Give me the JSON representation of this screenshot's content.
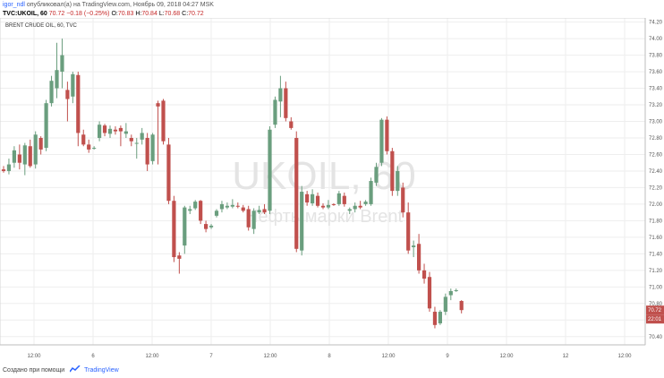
{
  "header": {
    "line1": {
      "user": "igor_ndl",
      "text": "опубликовал(а) на TradingView.com, Ноябрь 09, 2018 04:27 MSK"
    },
    "line2": {
      "symbol": "TVC:UKOIL, 60",
      "last": "70.72",
      "change": "−0.18 (−0.25%)",
      "o_label": "O:",
      "o_value": "70.83",
      "h_label": "H:",
      "h_value": "70.84",
      "l_label": "L:",
      "l_value": "70.68",
      "c_label": "C:",
      "c_value": "70.72"
    }
  },
  "footer": {
    "text": "Создано при помощи",
    "brand": "TradingView"
  },
  "watermark": {
    "line1": "UKOIL, 60",
    "line2": "Нефть марки Brent"
  },
  "colors": {
    "up": "#6a9e7e",
    "down": "#c0504d",
    "grid": "#eeeeee",
    "axis_text": "#555555",
    "price_label_bg": "#c0504d",
    "watermark": "#e4e4e4"
  },
  "chart_data": {
    "type": "candlestick",
    "title": "BRENT CRUDE OIL, 60, TVC",
    "y_range": [
      70.3,
      74.25
    ],
    "y_ticks": [
      "70.40",
      "70.60",
      "70.80",
      "71.00",
      "71.20",
      "71.40",
      "71.60",
      "71.80",
      "72.00",
      "72.20",
      "72.40",
      "72.60",
      "72.80",
      "73.00",
      "73.20",
      "73.40",
      "73.60",
      "73.80",
      "74.00",
      "74.20"
    ],
    "x_ticks": [
      "12:00",
      "6",
      "12:00",
      "7",
      "12:00",
      "8",
      "12:00",
      "9",
      "12:00",
      "12",
      "12:00"
    ],
    "current_price": "70.72",
    "current_time_label": "22:01",
    "candles": [
      {
        "o": 72.42,
        "h": 72.46,
        "l": 72.38,
        "c": 72.4
      },
      {
        "o": 72.4,
        "h": 72.55,
        "l": 72.36,
        "c": 72.48
      },
      {
        "o": 72.5,
        "h": 72.7,
        "l": 72.44,
        "c": 72.65
      },
      {
        "o": 72.6,
        "h": 72.72,
        "l": 72.42,
        "c": 72.5
      },
      {
        "o": 72.48,
        "h": 72.74,
        "l": 72.35,
        "c": 72.71
      },
      {
        "o": 72.7,
        "h": 72.78,
        "l": 72.44,
        "c": 72.46
      },
      {
        "o": 72.48,
        "h": 72.88,
        "l": 72.43,
        "c": 72.84
      },
      {
        "o": 72.8,
        "h": 72.82,
        "l": 72.6,
        "c": 72.66
      },
      {
        "o": 72.68,
        "h": 73.26,
        "l": 72.64,
        "c": 73.22
      },
      {
        "o": 73.22,
        "h": 73.55,
        "l": 73.18,
        "c": 73.49
      },
      {
        "o": 73.4,
        "h": 73.95,
        "l": 73.28,
        "c": 73.62
      },
      {
        "o": 73.6,
        "h": 74.0,
        "l": 73.4,
        "c": 73.8
      },
      {
        "o": 73.38,
        "h": 73.48,
        "l": 73.0,
        "c": 73.27
      },
      {
        "o": 73.3,
        "h": 73.6,
        "l": 73.22,
        "c": 73.57
      },
      {
        "o": 73.56,
        "h": 73.6,
        "l": 72.7,
        "c": 72.86
      },
      {
        "o": 72.84,
        "h": 72.9,
        "l": 72.7,
        "c": 72.72
      },
      {
        "o": 72.72,
        "h": 72.78,
        "l": 72.62,
        "c": 72.66
      },
      {
        "o": 72.68,
        "h": 72.7,
        "l": 72.66,
        "c": 72.68
      },
      {
        "o": 72.8,
        "h": 73.0,
        "l": 72.76,
        "c": 72.96
      },
      {
        "o": 72.95,
        "h": 72.97,
        "l": 72.82,
        "c": 72.86
      },
      {
        "o": 72.85,
        "h": 72.95,
        "l": 72.8,
        "c": 72.91
      },
      {
        "o": 72.9,
        "h": 72.94,
        "l": 72.84,
        "c": 72.88
      },
      {
        "o": 72.92,
        "h": 72.95,
        "l": 72.7,
        "c": 72.88
      },
      {
        "o": 72.85,
        "h": 72.98,
        "l": 72.8,
        "c": 72.88
      },
      {
        "o": 72.8,
        "h": 72.84,
        "l": 72.7,
        "c": 72.76
      },
      {
        "o": 72.74,
        "h": 72.8,
        "l": 72.55,
        "c": 72.74
      },
      {
        "o": 72.78,
        "h": 72.92,
        "l": 72.72,
        "c": 72.86
      },
      {
        "o": 72.8,
        "h": 72.86,
        "l": 72.4,
        "c": 72.48
      },
      {
        "o": 72.52,
        "h": 72.86,
        "l": 72.48,
        "c": 72.84
      },
      {
        "o": 73.22,
        "h": 73.25,
        "l": 72.48,
        "c": 73.18
      },
      {
        "o": 73.25,
        "h": 73.27,
        "l": 72.72,
        "c": 72.76
      },
      {
        "o": 72.72,
        "h": 72.8,
        "l": 72.0,
        "c": 72.04
      },
      {
        "o": 72.04,
        "h": 72.1,
        "l": 71.3,
        "c": 71.36
      },
      {
        "o": 71.38,
        "h": 71.42,
        "l": 71.16,
        "c": 71.34
      },
      {
        "o": 71.5,
        "h": 71.98,
        "l": 71.4,
        "c": 71.96
      },
      {
        "o": 71.92,
        "h": 71.98,
        "l": 71.88,
        "c": 71.94
      },
      {
        "o": 71.95,
        "h": 72.05,
        "l": 71.93,
        "c": 72.03
      },
      {
        "o": 72.04,
        "h": 72.05,
        "l": 71.76,
        "c": 71.8
      },
      {
        "o": 71.76,
        "h": 71.8,
        "l": 71.66,
        "c": 71.7
      },
      {
        "o": 71.72,
        "h": 71.76,
        "l": 71.7,
        "c": 71.74
      },
      {
        "o": 71.86,
        "h": 71.94,
        "l": 71.84,
        "c": 71.92
      },
      {
        "o": 71.94,
        "h": 72.04,
        "l": 71.9,
        "c": 72.0
      },
      {
        "o": 71.96,
        "h": 72.02,
        "l": 71.94,
        "c": 71.98
      },
      {
        "o": 71.97,
        "h": 72.06,
        "l": 71.95,
        "c": 71.99
      },
      {
        "o": 71.98,
        "h": 72.02,
        "l": 71.95,
        "c": 71.97
      },
      {
        "o": 71.96,
        "h": 71.99,
        "l": 71.9,
        "c": 71.92
      },
      {
        "o": 71.94,
        "h": 71.98,
        "l": 71.68,
        "c": 71.72
      },
      {
        "o": 71.7,
        "h": 71.95,
        "l": 71.64,
        "c": 71.92
      },
      {
        "o": 71.9,
        "h": 71.98,
        "l": 71.88,
        "c": 71.93
      },
      {
        "o": 71.94,
        "h": 72.0,
        "l": 71.88,
        "c": 71.9
      },
      {
        "o": 71.92,
        "h": 72.94,
        "l": 71.88,
        "c": 72.9
      },
      {
        "o": 72.96,
        "h": 73.3,
        "l": 72.92,
        "c": 73.26
      },
      {
        "o": 73.24,
        "h": 73.55,
        "l": 73.05,
        "c": 73.4
      },
      {
        "o": 73.4,
        "h": 73.48,
        "l": 73.0,
        "c": 73.04
      },
      {
        "o": 73.0,
        "h": 73.05,
        "l": 72.9,
        "c": 72.92
      },
      {
        "o": 72.8,
        "h": 72.88,
        "l": 71.42,
        "c": 71.46
      },
      {
        "o": 71.44,
        "h": 72.22,
        "l": 71.38,
        "c": 72.15
      },
      {
        "o": 72.12,
        "h": 72.16,
        "l": 71.98,
        "c": 72.02
      },
      {
        "o": 72.01,
        "h": 72.18,
        "l": 71.98,
        "c": 72.12
      },
      {
        "o": 72.1,
        "h": 72.14,
        "l": 71.96,
        "c": 71.98
      },
      {
        "o": 71.98,
        "h": 72.01,
        "l": 71.94,
        "c": 71.96
      },
      {
        "o": 71.96,
        "h": 72.05,
        "l": 71.94,
        "c": 71.99
      },
      {
        "o": 72.0,
        "h": 72.01,
        "l": 71.98,
        "c": 71.99
      },
      {
        "o": 72.0,
        "h": 72.16,
        "l": 71.98,
        "c": 72.13
      },
      {
        "o": 72.1,
        "h": 72.14,
        "l": 71.97,
        "c": 72.0
      },
      {
        "o": 71.92,
        "h": 71.96,
        "l": 71.88,
        "c": 71.94
      },
      {
        "o": 71.94,
        "h": 72.02,
        "l": 71.9,
        "c": 71.98
      },
      {
        "o": 71.98,
        "h": 72.04,
        "l": 71.94,
        "c": 71.96
      },
      {
        "o": 72.0,
        "h": 72.05,
        "l": 71.98,
        "c": 72.03
      },
      {
        "o": 72.0,
        "h": 72.32,
        "l": 71.98,
        "c": 72.28
      },
      {
        "o": 72.26,
        "h": 72.5,
        "l": 72.22,
        "c": 72.45
      },
      {
        "o": 72.5,
        "h": 73.04,
        "l": 72.46,
        "c": 73.02
      },
      {
        "o": 73.02,
        "h": 73.06,
        "l": 72.6,
        "c": 72.64
      },
      {
        "o": 72.64,
        "h": 72.68,
        "l": 72.1,
        "c": 72.16
      },
      {
        "o": 72.16,
        "h": 72.46,
        "l": 72.1,
        "c": 72.4
      },
      {
        "o": 72.2,
        "h": 72.26,
        "l": 71.84,
        "c": 71.9
      },
      {
        "o": 71.9,
        "h": 72.02,
        "l": 71.4,
        "c": 71.44
      },
      {
        "o": 71.48,
        "h": 71.56,
        "l": 71.36,
        "c": 71.5
      },
      {
        "o": 71.52,
        "h": 71.64,
        "l": 71.16,
        "c": 71.2
      },
      {
        "o": 71.2,
        "h": 71.28,
        "l": 71.04,
        "c": 71.1
      },
      {
        "o": 71.12,
        "h": 71.18,
        "l": 70.7,
        "c": 70.74
      },
      {
        "o": 70.7,
        "h": 70.76,
        "l": 70.5,
        "c": 70.54
      },
      {
        "o": 70.56,
        "h": 70.72,
        "l": 70.54,
        "c": 70.7
      },
      {
        "o": 70.7,
        "h": 70.92,
        "l": 70.66,
        "c": 70.88
      },
      {
        "o": 70.9,
        "h": 70.98,
        "l": 70.84,
        "c": 70.95
      },
      {
        "o": 70.96,
        "h": 70.98,
        "l": 70.94,
        "c": 70.96
      },
      {
        "o": 70.83,
        "h": 70.84,
        "l": 70.68,
        "c": 70.72
      }
    ]
  }
}
